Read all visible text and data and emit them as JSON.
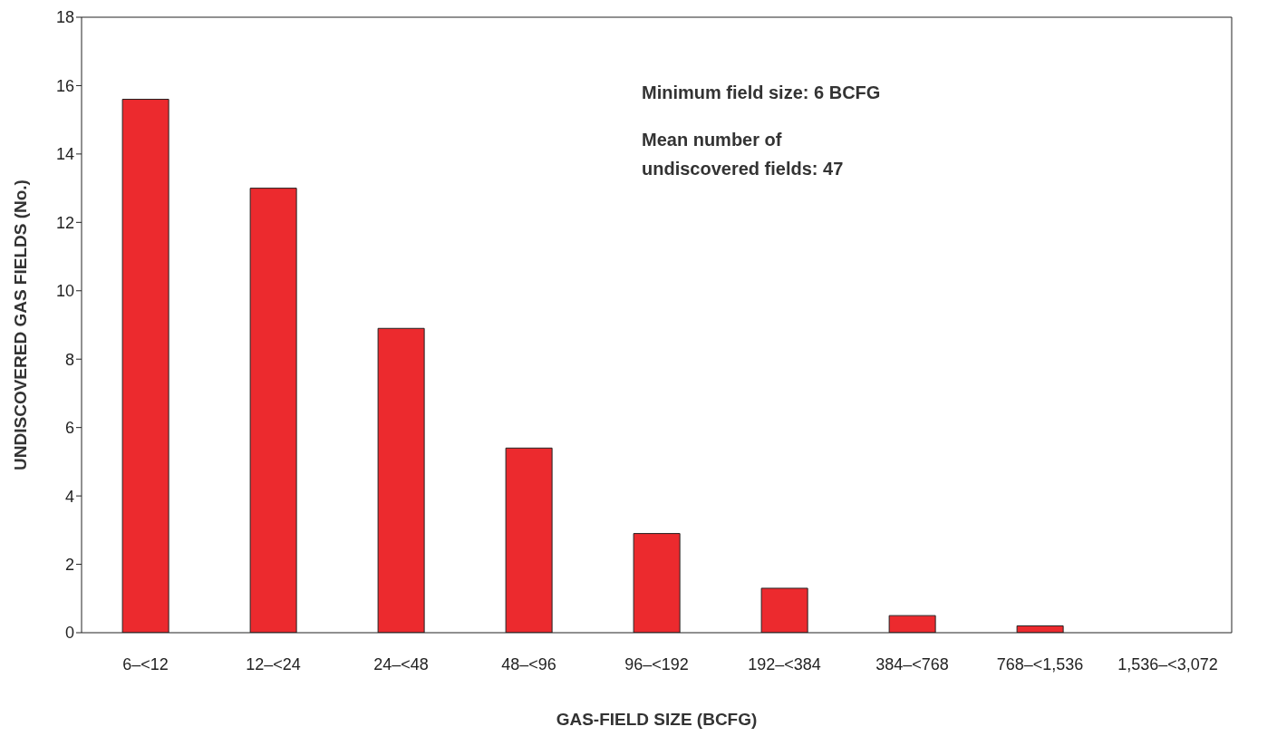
{
  "chart_data": {
    "type": "bar",
    "categories": [
      "6–<12",
      "12–<24",
      "24–<48",
      "48–<96",
      "96–<192",
      "192–<384",
      "384–<768",
      "768–<1,536",
      "1,536–<3,072"
    ],
    "values": [
      15.6,
      13.0,
      8.9,
      5.4,
      2.9,
      1.3,
      0.5,
      0.2,
      0
    ],
    "color": "#ec2a2e",
    "ylim": [
      0,
      18
    ],
    "yticks": [
      0,
      2,
      4,
      6,
      8,
      10,
      12,
      14,
      16,
      18
    ],
    "xlabel": "GAS-FIELD SIZE (BCFG)",
    "ylabel": "UNDISCOVERED GAS FIELDS (No.)",
    "annotations": [
      "Minimum field size: 6 BCFG",
      "Mean number of undiscovered fields: 47"
    ],
    "grid": false,
    "legend": false
  }
}
